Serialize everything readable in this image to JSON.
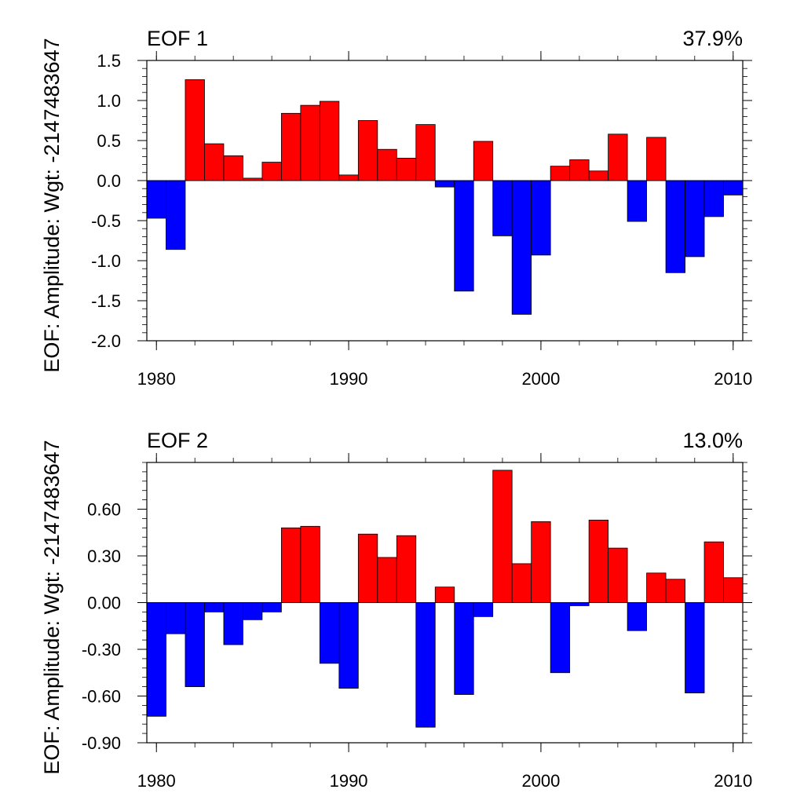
{
  "chart_data": [
    {
      "type": "bar",
      "title": "EOF 1",
      "subtitle": "37.9%",
      "ylabel": "EOF: Amplitude: Wgt: -2147483647",
      "xlabel": "",
      "x": [
        1980,
        1981,
        1982,
        1983,
        1984,
        1985,
        1986,
        1987,
        1988,
        1989,
        1990,
        1991,
        1992,
        1993,
        1994,
        1995,
        1996,
        1997,
        1998,
        1999,
        2000,
        2001,
        2002,
        2003,
        2004,
        2005,
        2006,
        2007,
        2008,
        2009,
        2010
      ],
      "values": [
        -0.47,
        -0.86,
        1.26,
        0.46,
        0.31,
        0.03,
        0.23,
        0.84,
        0.94,
        0.99,
        0.07,
        0.75,
        0.39,
        0.28,
        0.7,
        -0.08,
        -1.38,
        0.49,
        -0.69,
        -1.67,
        -0.93,
        0.18,
        0.26,
        0.12,
        0.58,
        -0.51,
        0.54,
        -1.15,
        -0.95,
        -0.45,
        -0.18
      ],
      "xlim": [
        1979.5,
        2010.5
      ],
      "ylim": [
        -2.0,
        1.5
      ],
      "yticks": [
        "1.5",
        "1.0",
        "0.5",
        "0.0",
        "-0.5",
        "-1.0",
        "-1.5",
        "-2.0"
      ],
      "ytick_values": [
        1.5,
        1.0,
        0.5,
        0.0,
        -0.5,
        -1.0,
        -1.5,
        -2.0
      ],
      "xticks": [
        "1980",
        "1990",
        "2000",
        "2010"
      ],
      "xtick_values": [
        1980,
        1990,
        2000,
        2010
      ],
      "colors": {
        "positive": "#ff0000",
        "negative": "#0000ff"
      },
      "grid": false
    },
    {
      "type": "bar",
      "title": "EOF 2",
      "subtitle": "13.0%",
      "ylabel": "EOF: Amplitude: Wgt: -2147483647",
      "xlabel": "",
      "x": [
        1980,
        1981,
        1982,
        1983,
        1984,
        1985,
        1986,
        1987,
        1988,
        1989,
        1990,
        1991,
        1992,
        1993,
        1994,
        1995,
        1996,
        1997,
        1998,
        1999,
        2000,
        2001,
        2002,
        2003,
        2004,
        2005,
        2006,
        2007,
        2008,
        2009,
        2010
      ],
      "values": [
        -0.73,
        -0.2,
        -0.54,
        -0.06,
        -0.27,
        -0.11,
        -0.06,
        0.48,
        0.49,
        -0.39,
        -0.55,
        0.44,
        0.29,
        0.43,
        -0.8,
        0.1,
        -0.59,
        -0.09,
        0.85,
        0.25,
        0.52,
        -0.45,
        -0.02,
        0.53,
        0.35,
        -0.18,
        0.19,
        0.15,
        -0.58,
        0.39,
        0.16
      ],
      "xlim": [
        1979.5,
        2010.5
      ],
      "ylim": [
        -0.9,
        0.9
      ],
      "yticks": [
        "0.60",
        "0.30",
        "0.00",
        "-0.30",
        "-0.60",
        "-0.90"
      ],
      "ytick_values": [
        0.6,
        0.3,
        0.0,
        -0.3,
        -0.6,
        -0.9
      ],
      "xticks": [
        "1980",
        "1990",
        "2000",
        "2010"
      ],
      "xtick_values": [
        1980,
        1990,
        2000,
        2010
      ],
      "colors": {
        "positive": "#ff0000",
        "negative": "#0000ff"
      },
      "grid": false
    }
  ]
}
